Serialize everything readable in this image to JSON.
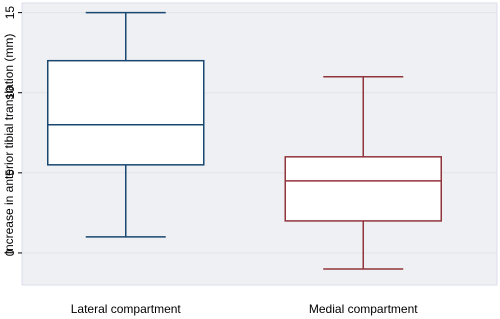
{
  "chart_data": {
    "type": "box",
    "y_label": "Increase in anterior tibial translation (mm)",
    "categories": [
      "Lateral compartment",
      "Medial compartment"
    ],
    "boxes": [
      {
        "min": 1,
        "q1": 5.5,
        "median": 8,
        "q3": 12,
        "max": 15,
        "color": "#1a476f"
      },
      {
        "min": -1,
        "q1": 2,
        "median": 4.5,
        "q3": 6,
        "max": 11,
        "color": "#90353b"
      }
    ],
    "ylim": [
      -2,
      15.6
    ],
    "yticks": [
      0,
      5,
      10,
      15
    ],
    "grid": true
  }
}
